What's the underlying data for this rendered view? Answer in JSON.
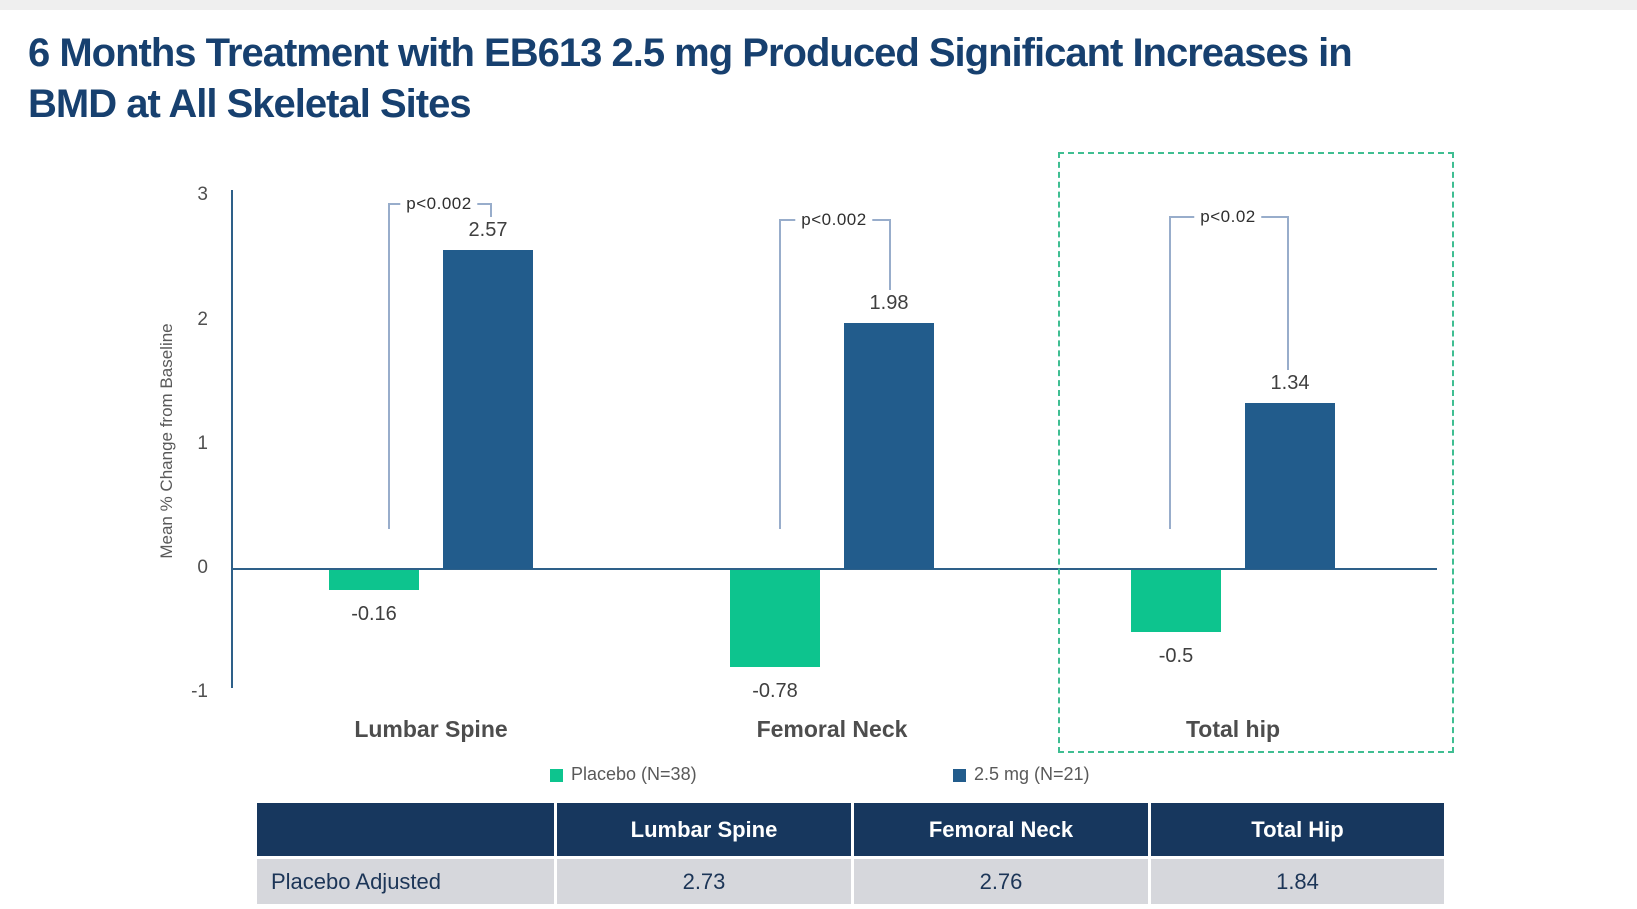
{
  "slide": {
    "title_line1": "6 Months Treatment with EB613 2.5 mg Produced Significant Increases in",
    "title_line2": "BMD at All Skeletal Sites"
  },
  "chart_data": {
    "type": "bar",
    "title": "",
    "xlabel": "",
    "ylabel": "Mean % Change from Baseline",
    "ylim": [
      -1,
      3
    ],
    "yticks": [
      3,
      2,
      1,
      0,
      -1
    ],
    "grid": false,
    "categories": [
      "Lumbar Spine",
      "Femoral Neck",
      "Total hip"
    ],
    "series": [
      {
        "name": "Placebo (N=38)",
        "color": "#0DC48E",
        "values": [
          -0.16,
          -0.78,
          -0.5
        ]
      },
      {
        "name": "2.5 mg (N=21)",
        "color": "#225C8C",
        "values": [
          2.57,
          1.98,
          1.34
        ]
      }
    ],
    "value_labels": {
      "placebo": [
        "-0.16",
        "-0.78",
        "-0.5"
      ],
      "treatment": [
        "2.57",
        "1.98",
        "1.34"
      ]
    },
    "p_values": [
      "p<0.002",
      "p<0.002",
      "p<0.02"
    ],
    "legend_position": "bottom",
    "highlighted_category": "Total hip"
  },
  "table": {
    "header": [
      "",
      "Lumbar Spine",
      "Femoral Neck",
      "Total Hip"
    ],
    "rows": [
      [
        "Placebo Adjusted",
        "2.73",
        "2.76",
        "1.84"
      ]
    ]
  },
  "colors": {
    "title": "#17406F",
    "top_strip": "#EFEFEF",
    "axis": "#2E6089",
    "bracket": "#98ADCB",
    "highlight_box": "#3FBE92",
    "table_header_bg": "#17375E",
    "table_header_text": "#FFFFFF",
    "table_row_bg": "#D6D7DC",
    "table_row_text": "#1C3557"
  }
}
